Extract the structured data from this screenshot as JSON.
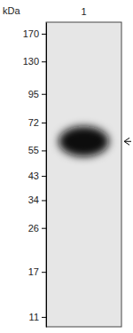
{
  "chart_data": {
    "type": "blot",
    "y_label": "kDa",
    "categories": [
      "1"
    ],
    "values": [
      60
    ],
    "log": "y",
    "ylim": [
      10,
      190
    ],
    "yticks": [
      170,
      130,
      95,
      72,
      55,
      43,
      34,
      26,
      17,
      11
    ]
  }
}
